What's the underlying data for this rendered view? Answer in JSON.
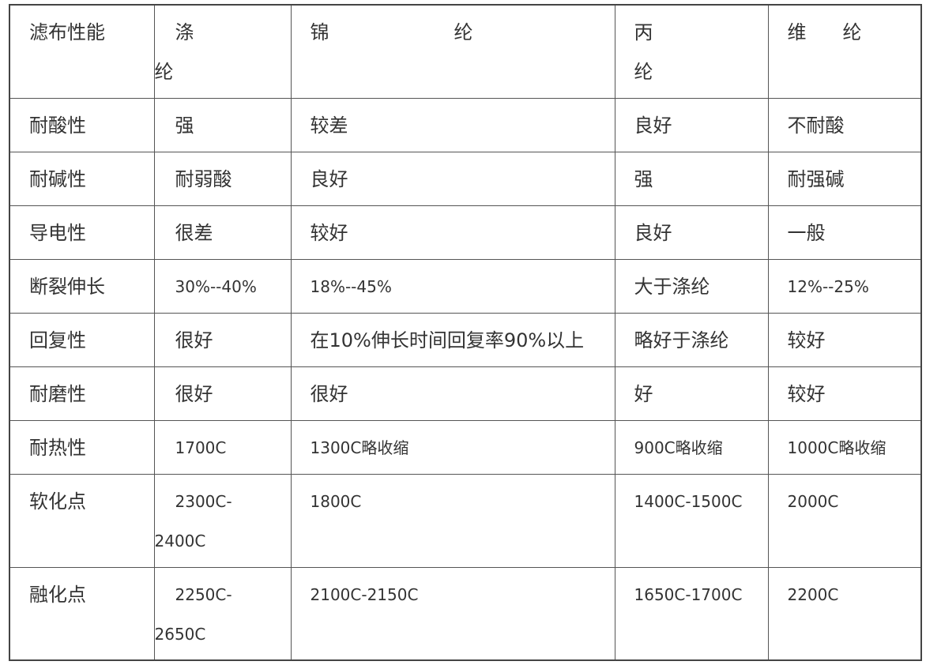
{
  "headers": [
    "滤布性能",
    "涤\n纶",
    "锦纶",
    "丙纶",
    "维纶"
  ],
  "rows": [
    [
      "耐酸性",
      "强",
      "较差",
      "良好",
      "不耐酸"
    ],
    [
      "耐碱性",
      "耐弱酸",
      "良好",
      "强",
      "耐强碱"
    ],
    [
      "导电性",
      "很差",
      "较好",
      "良好",
      "一般"
    ],
    [
      "断裂伸长",
      "30%--40%",
      "18%--45%",
      "大于涤纶",
      "12%--25%"
    ],
    [
      "回复性",
      "很好",
      "在10%伸长时间回复率90%以上",
      "略好于涤纶",
      "较好"
    ],
    [
      "耐磨性",
      "很好",
      "很好",
      "好",
      "较好"
    ],
    [
      "耐热性",
      "1700C",
      "1300C略收缩",
      "900C略收缩",
      "1000C略收缩"
    ],
    [
      "软化点",
      "2300C-\n2400C",
      "1800C",
      "1400C-1500C",
      "2000C"
    ],
    [
      "融化点",
      "2250C-\n2650C",
      "2100C-2150C",
      "1650C-1700C",
      "2200C"
    ]
  ]
}
